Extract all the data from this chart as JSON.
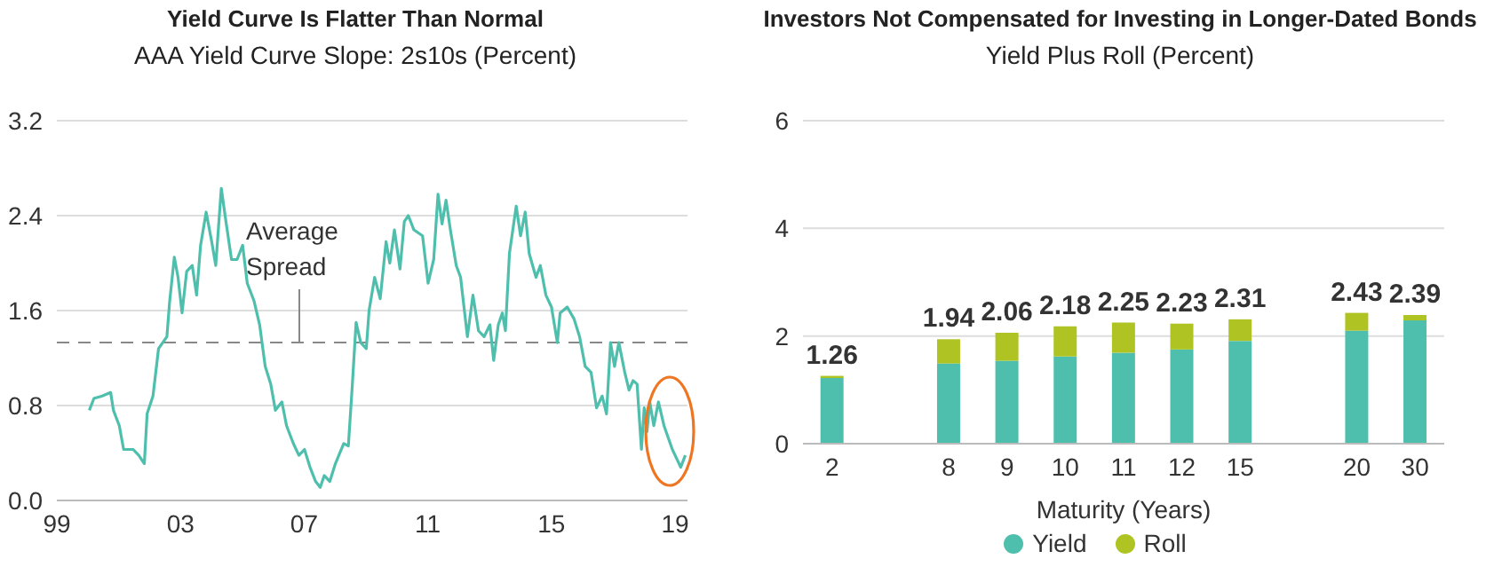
{
  "chart_data": [
    {
      "type": "line",
      "title": "Yield Curve Is Flatter Than Normal",
      "subtitle": "AAA Yield Curve Slope: 2s10s (Percent)",
      "x": [
        2000.05,
        2000.2,
        2000.47,
        2000.74,
        2000.83,
        2001.02,
        2001.16,
        2001.47,
        2001.65,
        2001.83,
        2001.92,
        2002.11,
        2002.29,
        2002.56,
        2002.65,
        2002.8,
        2002.92,
        2003.05,
        2003.2,
        2003.38,
        2003.52,
        2003.65,
        2003.83,
        2004.01,
        2004.14,
        2004.32,
        2004.47,
        2004.65,
        2004.83,
        2005.01,
        2005.16,
        2005.38,
        2005.56,
        2005.74,
        2005.92,
        2006.07,
        2006.28,
        2006.43,
        2006.65,
        2006.83,
        2007.01,
        2007.19,
        2007.37,
        2007.52,
        2007.65,
        2007.83,
        2008.01,
        2008.28,
        2008.43,
        2008.56,
        2008.68,
        2008.83,
        2009.01,
        2009.1,
        2009.28,
        2009.46,
        2009.65,
        2009.77,
        2009.92,
        2010.1,
        2010.24,
        2010.37,
        2010.55,
        2010.83,
        2011.01,
        2011.19,
        2011.33,
        2011.46,
        2011.59,
        2011.73,
        2011.92,
        2012.06,
        2012.28,
        2012.46,
        2012.64,
        2012.82,
        2013.01,
        2013.13,
        2013.28,
        2013.41,
        2013.51,
        2013.64,
        2013.86,
        2014.0,
        2014.15,
        2014.28,
        2014.5,
        2014.64,
        2014.82,
        2015.0,
        2015.19,
        2015.28,
        2015.51,
        2015.73,
        2015.91,
        2016.09,
        2016.28,
        2016.46,
        2016.64,
        2016.78,
        2016.91,
        2017.04,
        2017.18,
        2017.37,
        2017.51,
        2017.64,
        2017.77,
        2017.91,
        2018.0,
        2018.09,
        2018.18,
        2018.31,
        2018.46,
        2018.64,
        2018.91,
        2019.18,
        2019.33
      ],
      "values": [
        0.76,
        0.86,
        0.88,
        0.91,
        0.76,
        0.63,
        0.43,
        0.43,
        0.38,
        0.31,
        0.73,
        0.88,
        1.28,
        1.38,
        1.68,
        2.05,
        1.88,
        1.58,
        1.93,
        1.98,
        1.73,
        2.15,
        2.43,
        2.18,
        1.98,
        2.63,
        2.35,
        2.03,
        2.03,
        2.15,
        1.83,
        1.68,
        1.48,
        1.13,
        0.98,
        0.76,
        0.83,
        0.63,
        0.48,
        0.38,
        0.43,
        0.28,
        0.16,
        0.11,
        0.21,
        0.16,
        0.31,
        0.48,
        0.46,
        0.98,
        1.5,
        1.33,
        1.28,
        1.6,
        1.88,
        1.7,
        2.18,
        2.0,
        2.28,
        1.95,
        2.35,
        2.4,
        2.28,
        2.23,
        1.83,
        2.03,
        2.58,
        2.33,
        2.53,
        2.28,
        1.98,
        1.88,
        1.38,
        1.73,
        1.43,
        1.38,
        1.48,
        1.18,
        1.48,
        1.58,
        1.43,
        2.08,
        2.48,
        2.23,
        2.43,
        2.08,
        1.88,
        1.98,
        1.73,
        1.63,
        1.33,
        1.58,
        1.63,
        1.53,
        1.38,
        1.13,
        1.08,
        0.78,
        0.88,
        0.73,
        1.33,
        1.13,
        1.33,
        1.08,
        0.93,
        1.01,
        0.98,
        0.43,
        0.78,
        0.58,
        0.83,
        0.63,
        0.83,
        0.63,
        0.43,
        0.28,
        0.38
      ],
      "color": "#4fbfad",
      "line_style": "solid",
      "xlim": [
        1999,
        2019.4
      ],
      "xticks": [
        {
          "value": 1999,
          "label": "99"
        },
        {
          "value": 2003,
          "label": "03"
        },
        {
          "value": 2007,
          "label": "07"
        },
        {
          "value": 2011,
          "label": "11"
        },
        {
          "value": 2015,
          "label": "15"
        },
        {
          "value": 2019,
          "label": "19"
        }
      ],
      "ylim": [
        0,
        3.2
      ],
      "yticks": [
        {
          "value": 0,
          "label": "0.0"
        },
        0.8,
        1.6,
        2.4,
        3.2
      ],
      "grid": "y",
      "ref_lines": [
        {
          "axis": "y",
          "value": 1.33,
          "label": "Average Spread",
          "color": "#888888",
          "line_style": "dashed"
        }
      ]
    },
    {
      "type": "bar",
      "title": "Investors Not Compensated for Investing in Longer-Dated Bonds",
      "subtitle": "Yield Plus Roll (Percent)",
      "xlabel": "Maturity (Years)",
      "categories": [
        "2",
        null,
        "8",
        "9",
        "10",
        "11",
        "12",
        "15",
        null,
        "20",
        "30"
      ],
      "stacked": true,
      "series": [
        {
          "name": "Yield",
          "color": "#4fbfad",
          "values": [
            1.22,
            null,
            1.49,
            1.54,
            1.62,
            1.69,
            1.75,
            1.91,
            null,
            2.1,
            2.29
          ]
        },
        {
          "name": "Roll",
          "color": "#afc423",
          "values": [
            0.04,
            null,
            0.45,
            0.52,
            0.56,
            0.56,
            0.48,
            0.4,
            null,
            0.33,
            0.1
          ]
        }
      ],
      "totals": [
        "1.26",
        null,
        "1.94",
        "2.06",
        "2.18",
        "2.25",
        "2.23",
        "2.31",
        null,
        "2.43",
        "2.39"
      ],
      "ylim": [
        0,
        6
      ],
      "yticks": [
        0,
        2,
        4,
        6
      ],
      "grid": "y",
      "legend": "bottom"
    }
  ]
}
